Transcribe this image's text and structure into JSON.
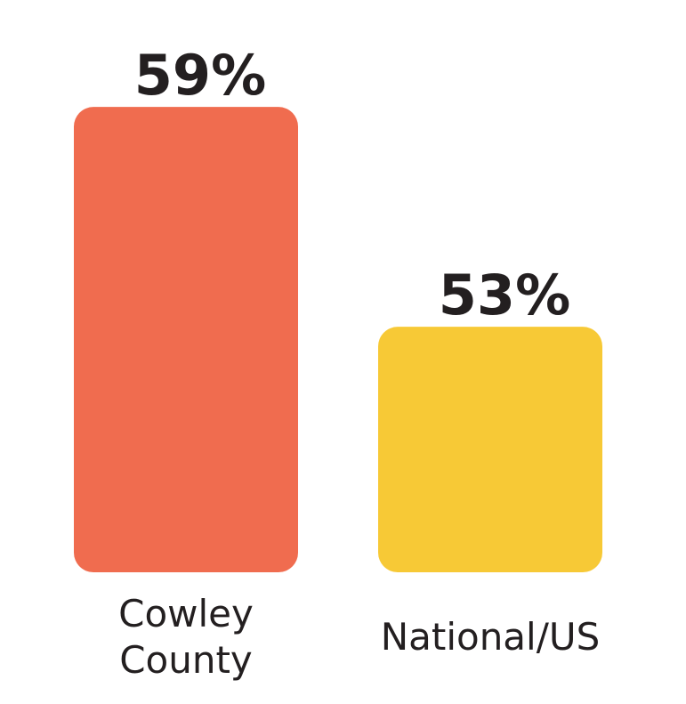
{
  "chart_data": {
    "type": "bar",
    "categories": [
      "Cowley County",
      "National/US"
    ],
    "values": [
      59,
      53
    ],
    "value_labels": [
      "59%",
      "53%"
    ],
    "colors": [
      "#f06c4f",
      "#f7c936"
    ],
    "ylim": [
      46.3,
      60
    ]
  }
}
